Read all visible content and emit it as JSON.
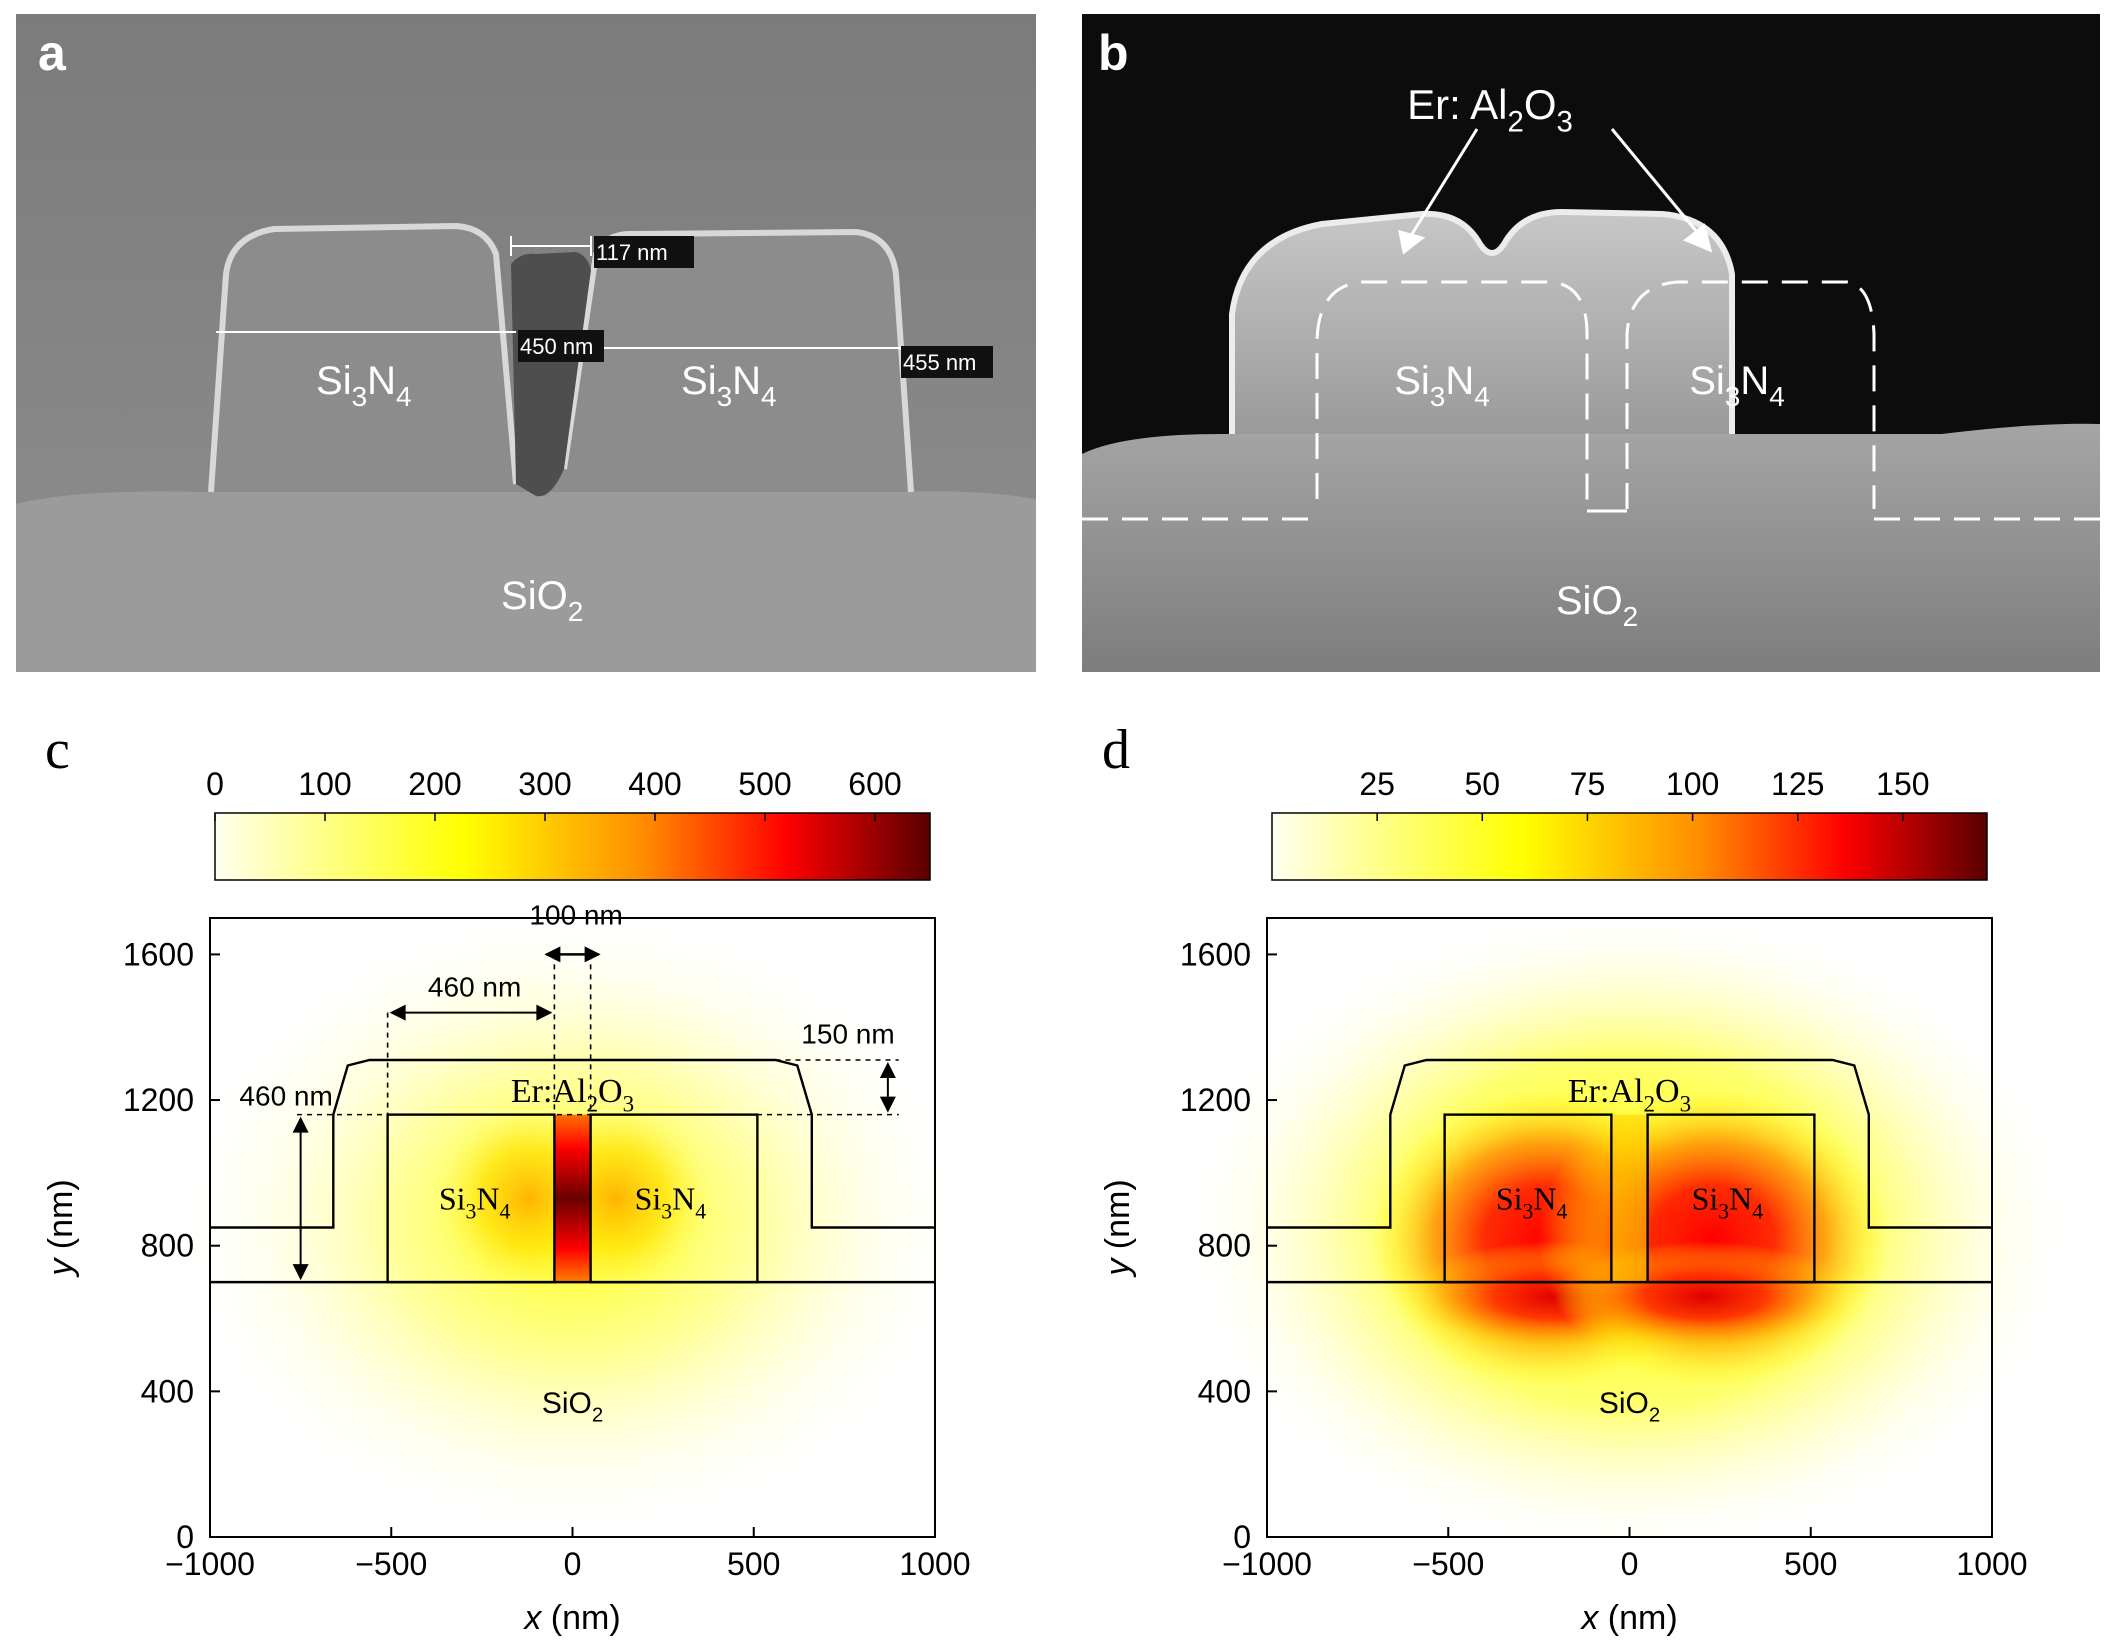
{
  "figure": {
    "panel_a": {
      "letter": "a",
      "label_left": "Si3N4",
      "label_right": "Si3N4",
      "label_bottom": "SiO2",
      "scale_gap": "117 nm",
      "scale_left": "450 nm",
      "scale_right": "455 nm"
    },
    "panel_b": {
      "letter": "b",
      "top_label": "Er: Al2O3",
      "label_left": "Si3N4",
      "label_right": "Si3N4",
      "label_bottom": "SiO2"
    },
    "panel_c": {
      "letter": "c",
      "labels": {
        "cladding": "Er:Al2O3",
        "core_left": "Si3N4",
        "core_right": "Si3N4",
        "substrate": "SiO2"
      },
      "dimensions": {
        "gap": "100 nm",
        "core_width": "460 nm",
        "clad_thickness": "150 nm",
        "core_height": "460 nm"
      }
    },
    "panel_d": {
      "letter": "d",
      "labels": {
        "cladding": "Er:Al2O3",
        "core_left": "Si3N4",
        "core_right": "Si3N4",
        "substrate": "SiO2"
      }
    }
  },
  "chart_data": [
    {
      "type": "heatmap",
      "panel": "c",
      "xlabel": "x (nm)",
      "ylabel": "y (nm)",
      "xlim": [
        -1000,
        1000
      ],
      "ylim": [
        0,
        1700
      ],
      "xticks": [
        -1000,
        -500,
        0,
        500,
        1000
      ],
      "yticks": [
        0,
        400,
        800,
        1200,
        1600
      ],
      "colorbar": {
        "min": 0,
        "max": 650,
        "ticks": [
          0,
          100,
          200,
          300,
          400,
          500,
          600
        ]
      },
      "colors": [
        "#fffff0",
        "#ffff00",
        "#ff6a00",
        "#ff0000",
        "#5a0000"
      ],
      "field_peak": {
        "x": 0,
        "y": 920,
        "value": 620
      }
    },
    {
      "type": "heatmap",
      "panel": "d",
      "xlabel": "x (nm)",
      "ylabel": "y (nm)",
      "xlim": [
        -1000,
        1000
      ],
      "ylim": [
        0,
        1700
      ],
      "xticks": [
        -1000,
        -500,
        0,
        500,
        1000
      ],
      "yticks": [
        0,
        400,
        800,
        1200,
        1600
      ],
      "colorbar": {
        "min": 0,
        "max": 170,
        "ticks": [
          25,
          50,
          75,
          100,
          125,
          150
        ]
      },
      "colors": [
        "#fffff0",
        "#ffff00",
        "#ff6a00",
        "#ff0000",
        "#5a0000"
      ],
      "field_peaks": [
        {
          "x": -230,
          "y": 820,
          "value": 140
        },
        {
          "x": 230,
          "y": 820,
          "value": 140
        }
      ]
    }
  ]
}
